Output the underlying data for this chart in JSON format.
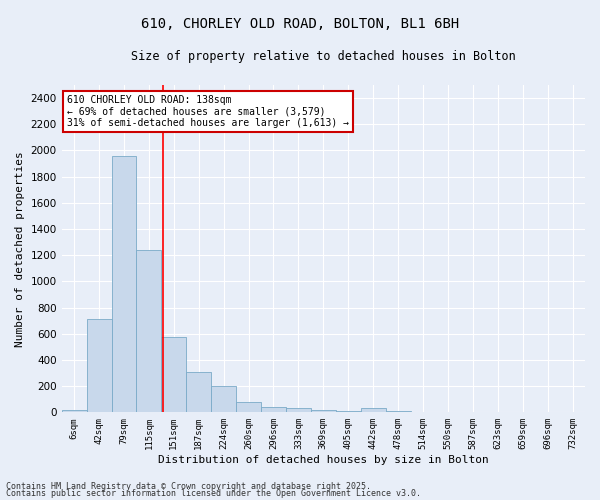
{
  "title_line1": "610, CHORLEY OLD ROAD, BOLTON, BL1 6BH",
  "title_line2": "Size of property relative to detached houses in Bolton",
  "xlabel": "Distribution of detached houses by size in Bolton",
  "ylabel": "Number of detached properties",
  "bar_color": "#c8d8eb",
  "bar_edge_color": "#7aaac8",
  "background_color": "#e8eef8",
  "grid_color": "#ffffff",
  "categories": [
    "6sqm",
    "42sqm",
    "79sqm",
    "115sqm",
    "151sqm",
    "187sqm",
    "224sqm",
    "260sqm",
    "296sqm",
    "333sqm",
    "369sqm",
    "405sqm",
    "442sqm",
    "478sqm",
    "514sqm",
    "550sqm",
    "587sqm",
    "623sqm",
    "659sqm",
    "696sqm",
    "732sqm"
  ],
  "values": [
    15,
    710,
    1960,
    1240,
    575,
    305,
    200,
    80,
    42,
    30,
    20,
    12,
    30,
    10,
    5,
    3,
    2,
    2,
    2,
    2,
    2
  ],
  "ylim": [
    0,
    2500
  ],
  "yticks": [
    0,
    200,
    400,
    600,
    800,
    1000,
    1200,
    1400,
    1600,
    1800,
    2000,
    2200,
    2400
  ],
  "red_line_x": 3.55,
  "annotation_text": "610 CHORLEY OLD ROAD: 138sqm\n← 69% of detached houses are smaller (3,579)\n31% of semi-detached houses are larger (1,613) →",
  "annotation_box_color": "#ffffff",
  "annotation_border_color": "#cc0000",
  "footnote1": "Contains HM Land Registry data © Crown copyright and database right 2025.",
  "footnote2": "Contains public sector information licensed under the Open Government Licence v3.0."
}
